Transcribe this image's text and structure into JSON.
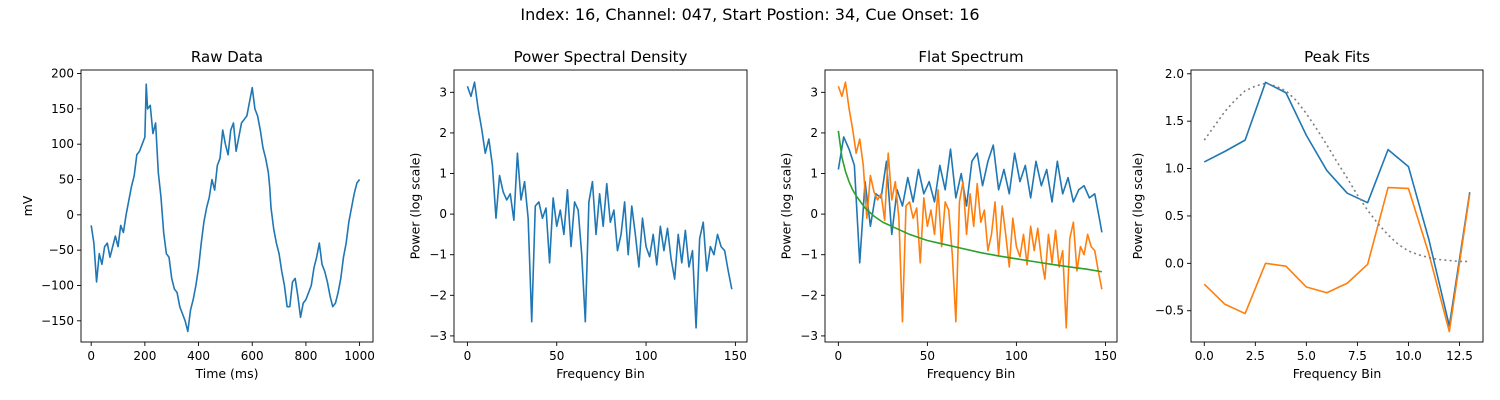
{
  "suptitle": "Index: 16, Channel: 047, Start Postion: 34, Cue Onset: 16",
  "colors": {
    "blue": "#1f77b4",
    "orange": "#ff7f0e",
    "green": "#2ca02c",
    "gray": "#808080"
  },
  "chart_data": [
    {
      "type": "line",
      "title": "Raw Data",
      "xlabel": "Time (ms)",
      "ylabel": "mV",
      "xlim": [
        -38,
        1050
      ],
      "ylim": [
        -180,
        205
      ],
      "xticks": [
        0,
        200,
        400,
        600,
        800,
        1000
      ],
      "yticks": [
        -150,
        -100,
        -50,
        0,
        50,
        100,
        150,
        200
      ],
      "series": [
        {
          "color": "#1f77b4",
          "style": "solid",
          "x": [
            0,
            10,
            20,
            30,
            40,
            50,
            60,
            70,
            80,
            90,
            100,
            110,
            120,
            130,
            140,
            150,
            160,
            170,
            180,
            190,
            200,
            205,
            210,
            220,
            230,
            240,
            250,
            260,
            270,
            280,
            290,
            300,
            310,
            320,
            330,
            340,
            350,
            360,
            370,
            380,
            390,
            400,
            410,
            420,
            430,
            440,
            450,
            460,
            470,
            480,
            490,
            500,
            510,
            520,
            530,
            540,
            550,
            560,
            570,
            580,
            590,
            600,
            610,
            620,
            630,
            640,
            650,
            660,
            665,
            670,
            680,
            690,
            700,
            710,
            720,
            730,
            740,
            750,
            760,
            770,
            780,
            790,
            800,
            810,
            820,
            830,
            840,
            850,
            860,
            870,
            880,
            890,
            900,
            910,
            920,
            930,
            940,
            950,
            960,
            970,
            980,
            990,
            1000
          ],
          "y": [
            -15,
            -40,
            -95,
            -55,
            -70,
            -45,
            -40,
            -60,
            -45,
            -30,
            -45,
            -15,
            -25,
            0,
            20,
            40,
            55,
            85,
            90,
            100,
            110,
            185,
            150,
            155,
            115,
            130,
            60,
            25,
            -25,
            -55,
            -60,
            -90,
            -105,
            -110,
            -130,
            -140,
            -150,
            -165,
            -135,
            -120,
            -100,
            -75,
            -40,
            -10,
            10,
            25,
            50,
            35,
            70,
            80,
            120,
            100,
            85,
            120,
            130,
            90,
            110,
            130,
            135,
            140,
            160,
            180,
            150,
            140,
            120,
            95,
            80,
            60,
            40,
            10,
            -20,
            -40,
            -55,
            -80,
            -100,
            -130,
            -130,
            -95,
            -90,
            -115,
            -145,
            -125,
            -120,
            -110,
            -100,
            -75,
            -60,
            -40,
            -70,
            -80,
            -95,
            -115,
            -130,
            -125,
            -110,
            -90,
            -60,
            -40,
            -10,
            10,
            30,
            45,
            50
          ]
        }
      ]
    },
    {
      "type": "line",
      "title": "Power Spectral Density",
      "xlabel": "Frequency Bin",
      "ylabel": "Power (log scale)",
      "xlim": [
        -7.5,
        156.5
      ],
      "ylim": [
        -3.15,
        3.55
      ],
      "xticks": [
        0,
        50,
        100,
        150
      ],
      "yticks": [
        -3,
        -2,
        -1,
        0,
        1,
        2,
        3
      ],
      "series": [
        {
          "color": "#1f77b4",
          "style": "solid",
          "x": [
            0,
            2,
            4,
            6,
            8,
            10,
            12,
            14,
            16,
            18,
            20,
            22,
            24,
            26,
            28,
            30,
            32,
            34,
            36,
            38,
            40,
            42,
            44,
            46,
            48,
            50,
            52,
            54,
            56,
            58,
            60,
            62,
            64,
            66,
            68,
            70,
            72,
            74,
            76,
            78,
            80,
            82,
            84,
            86,
            88,
            90,
            92,
            94,
            96,
            98,
            100,
            102,
            104,
            106,
            108,
            110,
            112,
            114,
            116,
            118,
            120,
            122,
            124,
            126,
            128,
            130,
            132,
            134,
            136,
            138,
            140,
            142,
            144,
            146,
            148
          ],
          "y": [
            3.15,
            2.9,
            3.25,
            2.6,
            2.1,
            1.5,
            1.85,
            1.2,
            -0.1,
            0.95,
            0.55,
            0.35,
            0.5,
            -0.15,
            1.5,
            0.35,
            0.8,
            -0.1,
            -2.65,
            0.2,
            0.3,
            -0.1,
            0.15,
            -1.2,
            0.4,
            -0.3,
            0.1,
            -0.5,
            0.6,
            -0.8,
            0.3,
            0.1,
            -1.0,
            -2.65,
            0.3,
            0.8,
            -0.5,
            0.5,
            -0.3,
            0.75,
            -0.2,
            0.1,
            -0.9,
            -0.5,
            0.3,
            -1.0,
            0.2,
            -0.5,
            -1.3,
            -0.1,
            -0.8,
            -1.05,
            -0.5,
            -1.25,
            -0.3,
            -0.9,
            -0.35,
            -1.1,
            -1.6,
            -0.5,
            -1.2,
            -0.4,
            -1.3,
            -0.9,
            -2.8,
            -0.6,
            -0.2,
            -1.4,
            -0.8,
            -1.0,
            -0.5,
            -0.8,
            -0.9,
            -1.4,
            -1.85
          ]
        }
      ]
    },
    {
      "type": "line",
      "title": "Flat Spectrum",
      "xlabel": "Frequency Bin",
      "ylabel": "Power (log scale)",
      "xlim": [
        -7.5,
        156.5
      ],
      "ylim": [
        -3.15,
        3.55
      ],
      "xticks": [
        0,
        50,
        100,
        150
      ],
      "yticks": [
        -3,
        -2,
        -1,
        0,
        1,
        2,
        3
      ],
      "series": [
        {
          "color": "#1f77b4",
          "style": "solid",
          "x": [
            0,
            3,
            6,
            9,
            12,
            15,
            18,
            21,
            24,
            27,
            30,
            33,
            36,
            39,
            42,
            45,
            48,
            51,
            54,
            57,
            60,
            63,
            66,
            69,
            72,
            75,
            78,
            81,
            84,
            87,
            90,
            93,
            96,
            99,
            102,
            105,
            108,
            111,
            114,
            117,
            120,
            123,
            126,
            129,
            132,
            135,
            138,
            141,
            144,
            147,
            148
          ],
          "y": [
            1.1,
            1.9,
            1.6,
            1.2,
            -1.2,
            0.8,
            -0.3,
            0.5,
            0.4,
            1.3,
            -0.5,
            0.6,
            0.2,
            0.9,
            0.3,
            1.1,
            0.5,
            0.8,
            0.3,
            1.2,
            0.6,
            1.6,
            0.4,
            1.0,
            0.2,
            1.3,
            1.5,
            0.7,
            1.3,
            1.7,
            0.6,
            1.1,
            0.5,
            1.5,
            0.8,
            1.2,
            0.4,
            1.3,
            0.7,
            1.1,
            0.3,
            1.3,
            0.5,
            0.9,
            0.3,
            0.6,
            0.7,
            0.4,
            0.5,
            -0.2,
            -0.45
          ]
        },
        {
          "color": "#ff7f0e",
          "style": "solid",
          "x": [
            0,
            2,
            4,
            6,
            8,
            10,
            12,
            14,
            16,
            18,
            20,
            22,
            24,
            26,
            28,
            30,
            32,
            34,
            36,
            38,
            40,
            42,
            44,
            46,
            48,
            50,
            52,
            54,
            56,
            58,
            60,
            62,
            64,
            66,
            68,
            70,
            72,
            74,
            76,
            78,
            80,
            82,
            84,
            86,
            88,
            90,
            92,
            94,
            96,
            98,
            100,
            102,
            104,
            106,
            108,
            110,
            112,
            114,
            116,
            118,
            120,
            122,
            124,
            126,
            128,
            130,
            132,
            134,
            136,
            138,
            140,
            142,
            144,
            146,
            148
          ],
          "y": [
            3.15,
            2.9,
            3.25,
            2.6,
            2.1,
            1.5,
            1.85,
            1.2,
            -0.1,
            0.95,
            0.55,
            0.35,
            0.5,
            -0.15,
            1.5,
            0.35,
            0.8,
            -0.1,
            -2.65,
            0.2,
            0.3,
            -0.1,
            0.15,
            -1.2,
            0.4,
            -0.3,
            0.1,
            -0.5,
            0.6,
            -0.8,
            0.3,
            0.1,
            -1.0,
            -2.65,
            0.3,
            0.8,
            -0.5,
            0.5,
            -0.3,
            0.75,
            -0.2,
            0.1,
            -0.9,
            -0.5,
            0.3,
            -1.0,
            0.2,
            -0.5,
            -1.3,
            -0.1,
            -0.8,
            -1.05,
            -0.5,
            -1.25,
            -0.3,
            -0.9,
            -0.35,
            -1.1,
            -1.6,
            -0.5,
            -1.2,
            -0.4,
            -1.3,
            -0.9,
            -2.8,
            -0.6,
            -0.2,
            -1.4,
            -0.8,
            -1.0,
            -0.5,
            -0.8,
            -0.9,
            -1.4,
            -1.85
          ]
        },
        {
          "color": "#2ca02c",
          "style": "solid",
          "x": [
            0,
            2,
            4,
            6,
            8,
            10,
            15,
            20,
            25,
            30,
            40,
            50,
            60,
            70,
            80,
            90,
            100,
            110,
            120,
            130,
            140,
            148
          ],
          "y": [
            2.05,
            1.4,
            1.05,
            0.8,
            0.6,
            0.45,
            0.15,
            -0.05,
            -0.2,
            -0.3,
            -0.5,
            -0.65,
            -0.75,
            -0.85,
            -0.95,
            -1.03,
            -1.1,
            -1.17,
            -1.24,
            -1.3,
            -1.36,
            -1.42
          ]
        }
      ]
    },
    {
      "type": "line",
      "title": "Peak Fits",
      "xlabel": "Frequency Bin",
      "ylabel": "Power (log scale)",
      "xlim": [
        -0.65,
        13.65
      ],
      "ylim": [
        -0.83,
        2.04
      ],
      "xticks": [
        0.0,
        2.5,
        5.0,
        7.5,
        10.0,
        12.5
      ],
      "yticks": [
        -0.5,
        0.0,
        0.5,
        1.0,
        1.5,
        2.0
      ],
      "series": [
        {
          "color": "#1f77b4",
          "style": "solid",
          "x": [
            0,
            1,
            2,
            3,
            4,
            5,
            6,
            7,
            8,
            9,
            10,
            11,
            12,
            13
          ],
          "y": [
            1.07,
            1.18,
            1.3,
            1.91,
            1.8,
            1.35,
            0.98,
            0.74,
            0.64,
            1.2,
            1.02,
            0.25,
            -0.66,
            0.75
          ]
        },
        {
          "color": "#ff7f0e",
          "style": "solid",
          "x": [
            0,
            1,
            2,
            3,
            4,
            5,
            6,
            7,
            8,
            9,
            10,
            11,
            12,
            13
          ],
          "y": [
            -0.22,
            -0.43,
            -0.53,
            0.0,
            -0.03,
            -0.25,
            -0.31,
            -0.21,
            -0.01,
            0.8,
            0.79,
            0.1,
            -0.72,
            0.73
          ]
        },
        {
          "color": "#808080",
          "style": "dotted",
          "x": [
            0,
            0.5,
            1,
            1.5,
            2,
            2.5,
            3,
            3.5,
            4,
            4.5,
            5,
            5.5,
            6,
            6.5,
            7,
            7.5,
            8,
            8.5,
            9,
            9.5,
            10,
            10.5,
            11,
            11.5,
            12,
            12.5,
            13
          ],
          "y": [
            1.3,
            1.45,
            1.6,
            1.72,
            1.82,
            1.87,
            1.9,
            1.87,
            1.82,
            1.72,
            1.58,
            1.42,
            1.25,
            1.07,
            0.9,
            0.72,
            0.56,
            0.42,
            0.3,
            0.2,
            0.13,
            0.09,
            0.06,
            0.04,
            0.03,
            0.02,
            0.02
          ]
        }
      ]
    }
  ]
}
